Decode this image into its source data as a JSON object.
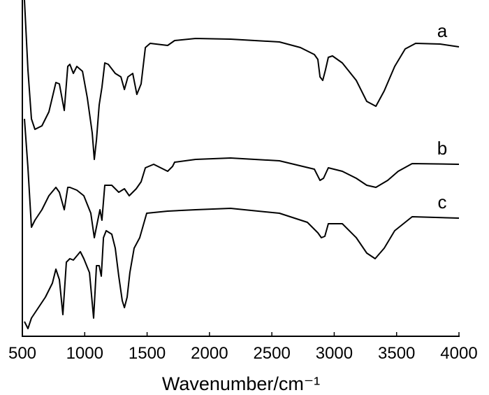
{
  "chart_data": {
    "type": "line",
    "x_label": "Wavenumber/cm⁻¹",
    "xlim": [
      500,
      4000
    ],
    "xticks": [
      500,
      1000,
      1500,
      2000,
      2500,
      3000,
      3500,
      4000
    ],
    "ylim": [
      0,
      481
    ],
    "grid": false,
    "series": [
      {
        "name": "a",
        "color": "#000000",
        "x": [
          517,
          545,
          573,
          601,
          657,
          713,
          769,
          797,
          836,
          864,
          881,
          909,
          937,
          982,
          1021,
          1060,
          1077,
          1094,
          1116,
          1138,
          1161,
          1189,
          1245,
          1290,
          1318,
          1346,
          1385,
          1418,
          1452,
          1486,
          1525,
          1665,
          1721,
          1889,
          2169,
          2561,
          2729,
          2841,
          2869,
          2886,
          2908,
          2930,
          2953,
          2986,
          3065,
          3177,
          3261,
          3334,
          3401,
          3485,
          3569,
          3653,
          3849,
          4000
        ],
        "values": [
          481,
          381,
          311,
          296,
          301,
          321,
          363,
          361,
          323,
          386,
          389,
          376,
          386,
          379,
          341,
          291,
          253,
          281,
          331,
          356,
          391,
          389,
          376,
          371,
          353,
          371,
          376,
          346,
          361,
          413,
          419,
          416,
          423,
          426,
          425,
          421,
          413,
          403,
          396,
          371,
          366,
          381,
          399,
          401,
          391,
          366,
          336,
          329,
          351,
          386,
          411,
          419,
          418,
          414
        ]
      },
      {
        "name": "b",
        "color": "#000000",
        "x": [
          517,
          545,
          573,
          601,
          657,
          713,
          769,
          797,
          836,
          864,
          881,
          937,
          993,
          1049,
          1077,
          1105,
          1122,
          1138,
          1161,
          1217,
          1273,
          1318,
          1357,
          1413,
          1452,
          1486,
          1553,
          1665,
          1704,
          1721,
          1889,
          2169,
          2561,
          2841,
          2886,
          2914,
          2953,
          3065,
          3177,
          3261,
          3334,
          3429,
          3513,
          3625,
          4000
        ],
        "values": [
          311,
          241,
          156,
          166,
          181,
          201,
          213,
          206,
          181,
          213,
          213,
          209,
          201,
          176,
          141,
          166,
          181,
          166,
          216,
          216,
          206,
          211,
          201,
          211,
          221,
          241,
          246,
          236,
          243,
          249,
          253,
          255,
          251,
          239,
          223,
          226,
          241,
          236,
          226,
          216,
          213,
          223,
          236,
          247,
          246
        ]
      },
      {
        "name": "c",
        "color": "#000000",
        "x": [
          517,
          545,
          573,
          629,
          685,
          741,
          769,
          797,
          825,
          853,
          881,
          909,
          965,
          993,
          1038,
          1071,
          1094,
          1116,
          1133,
          1150,
          1172,
          1217,
          1245,
          1273,
          1301,
          1318,
          1340,
          1362,
          1396,
          1441,
          1497,
          1665,
          1889,
          2169,
          2561,
          2785,
          2869,
          2897,
          2925,
          2953,
          3065,
          3177,
          3261,
          3328,
          3401,
          3485,
          3625,
          4000
        ],
        "values": [
          21,
          11,
          26,
          41,
          56,
          76,
          96,
          81,
          31,
          106,
          111,
          109,
          121,
          111,
          91,
          26,
          101,
          101,
          86,
          141,
          151,
          146,
          126,
          86,
          51,
          41,
          56,
          91,
          126,
          141,
          176,
          179,
          181,
          183,
          176,
          163,
          148,
          141,
          143,
          161,
          161,
          141,
          119,
          111,
          126,
          151,
          171,
          169
        ]
      }
    ]
  }
}
